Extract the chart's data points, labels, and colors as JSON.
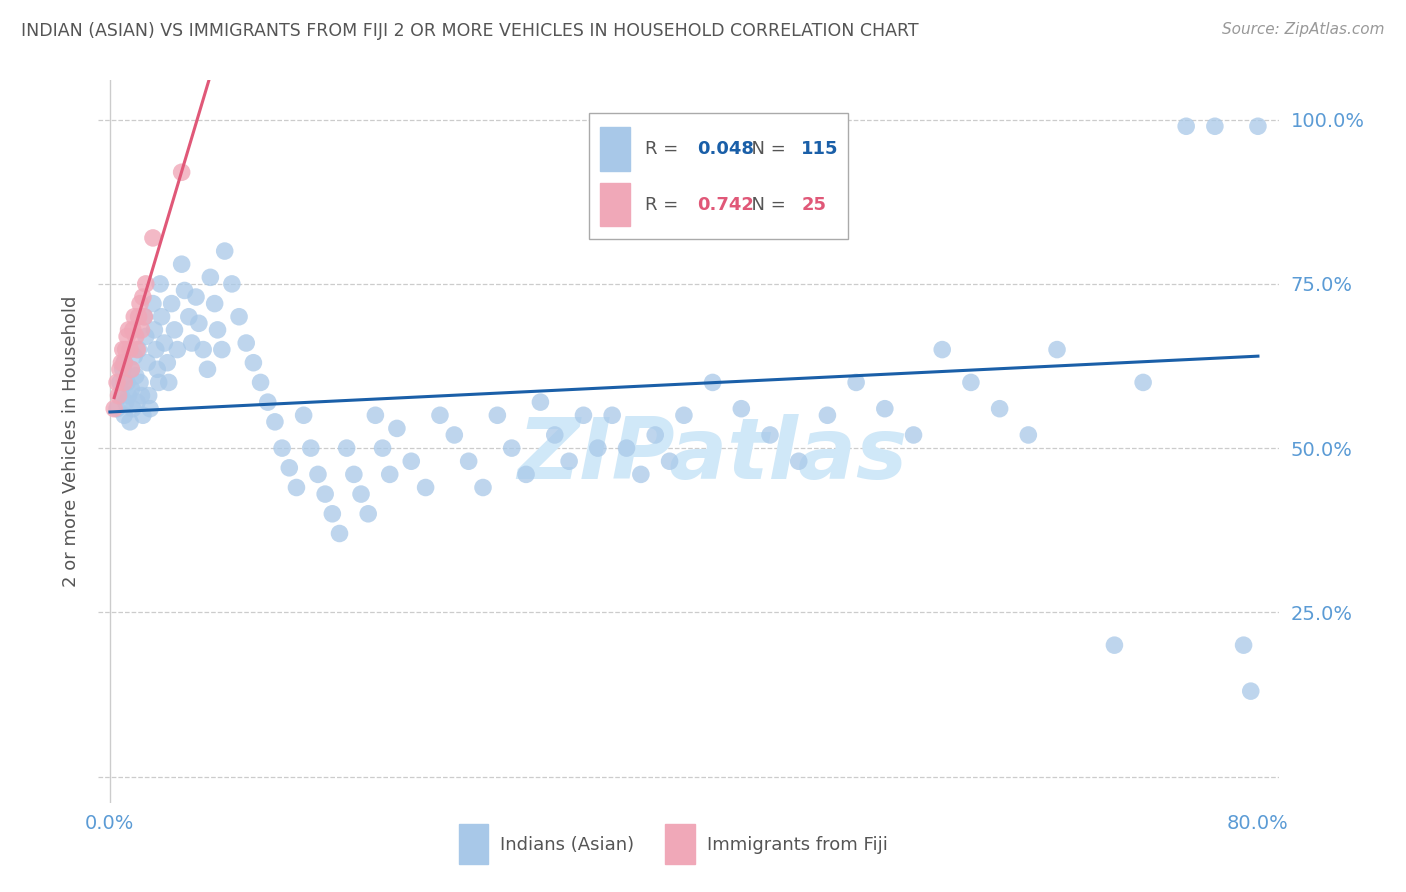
{
  "title": "INDIAN (ASIAN) VS IMMIGRANTS FROM FIJI 2 OR MORE VEHICLES IN HOUSEHOLD CORRELATION CHART",
  "source": "Source: ZipAtlas.com",
  "ylabel": "2 or more Vehicles in Household",
  "xmin": 0.0,
  "xmax": 0.8,
  "ymin": 0.0,
  "ymax": 1.0,
  "x_tick_positions": [
    0.0,
    0.1,
    0.2,
    0.3,
    0.4,
    0.5,
    0.6,
    0.7,
    0.8
  ],
  "x_tick_labels": [
    "0.0%",
    "",
    "",
    "",
    "",
    "",
    "",
    "",
    "80.0%"
  ],
  "y_tick_positions": [
    0.0,
    0.25,
    0.5,
    0.75,
    1.0
  ],
  "y_tick_labels_right": [
    "",
    "25.0%",
    "50.0%",
    "75.0%",
    "100.0%"
  ],
  "blue_scatter_color": "#a8c8e8",
  "pink_scatter_color": "#f0a8b8",
  "blue_line_color": "#1a5fa8",
  "pink_line_color": "#e05878",
  "tick_color": "#5b9bd5",
  "title_color": "#555555",
  "source_color": "#999999",
  "legend_label_color": "#555555",
  "legend_blue_R": "0.048",
  "legend_blue_N": "115",
  "legend_pink_R": "0.742",
  "legend_pink_N": "25",
  "watermark_text": "ZIPatlas",
  "watermark_color": "#d0e8f8",
  "grid_color": "#cccccc",
  "blue_x": [
    0.005,
    0.007,
    0.008,
    0.009,
    0.01,
    0.01,
    0.011,
    0.012,
    0.013,
    0.014,
    0.015,
    0.015,
    0.016,
    0.017,
    0.018,
    0.019,
    0.02,
    0.021,
    0.022,
    0.023,
    0.024,
    0.025,
    0.026,
    0.027,
    0.028,
    0.03,
    0.031,
    0.032,
    0.033,
    0.034,
    0.035,
    0.036,
    0.038,
    0.04,
    0.041,
    0.043,
    0.045,
    0.047,
    0.05,
    0.052,
    0.055,
    0.057,
    0.06,
    0.062,
    0.065,
    0.068,
    0.07,
    0.073,
    0.075,
    0.078,
    0.08,
    0.085,
    0.09,
    0.095,
    0.1,
    0.105,
    0.11,
    0.115,
    0.12,
    0.125,
    0.13,
    0.135,
    0.14,
    0.145,
    0.15,
    0.155,
    0.16,
    0.165,
    0.17,
    0.175,
    0.18,
    0.185,
    0.19,
    0.195,
    0.2,
    0.21,
    0.22,
    0.23,
    0.24,
    0.25,
    0.26,
    0.27,
    0.28,
    0.29,
    0.3,
    0.31,
    0.32,
    0.33,
    0.34,
    0.35,
    0.36,
    0.37,
    0.38,
    0.39,
    0.4,
    0.42,
    0.44,
    0.46,
    0.48,
    0.5,
    0.52,
    0.54,
    0.56,
    0.58,
    0.6,
    0.62,
    0.64,
    0.66,
    0.7,
    0.72,
    0.75,
    0.77,
    0.79,
    0.795,
    0.8
  ],
  "blue_y": [
    0.56,
    0.6,
    0.58,
    0.62,
    0.55,
    0.63,
    0.57,
    0.6,
    0.58,
    0.54,
    0.62,
    0.59,
    0.56,
    0.64,
    0.61,
    0.57,
    0.65,
    0.6,
    0.58,
    0.55,
    0.7,
    0.67,
    0.63,
    0.58,
    0.56,
    0.72,
    0.68,
    0.65,
    0.62,
    0.6,
    0.75,
    0.7,
    0.66,
    0.63,
    0.6,
    0.72,
    0.68,
    0.65,
    0.78,
    0.74,
    0.7,
    0.66,
    0.73,
    0.69,
    0.65,
    0.62,
    0.76,
    0.72,
    0.68,
    0.65,
    0.8,
    0.75,
    0.7,
    0.66,
    0.63,
    0.6,
    0.57,
    0.54,
    0.5,
    0.47,
    0.44,
    0.55,
    0.5,
    0.46,
    0.43,
    0.4,
    0.37,
    0.5,
    0.46,
    0.43,
    0.4,
    0.55,
    0.5,
    0.46,
    0.53,
    0.48,
    0.44,
    0.55,
    0.52,
    0.48,
    0.44,
    0.55,
    0.5,
    0.46,
    0.57,
    0.52,
    0.48,
    0.55,
    0.5,
    0.55,
    0.5,
    0.46,
    0.52,
    0.48,
    0.55,
    0.6,
    0.56,
    0.52,
    0.48,
    0.55,
    0.6,
    0.56,
    0.52,
    0.65,
    0.6,
    0.56,
    0.52,
    0.65,
    0.2,
    0.6,
    0.99,
    0.99,
    0.2,
    0.13,
    0.99
  ],
  "pink_x": [
    0.003,
    0.005,
    0.006,
    0.007,
    0.008,
    0.009,
    0.01,
    0.01,
    0.011,
    0.012,
    0.013,
    0.014,
    0.015,
    0.016,
    0.017,
    0.018,
    0.019,
    0.02,
    0.021,
    0.022,
    0.023,
    0.024,
    0.025,
    0.03,
    0.05
  ],
  "pink_y": [
    0.56,
    0.6,
    0.58,
    0.62,
    0.63,
    0.65,
    0.6,
    0.63,
    0.65,
    0.67,
    0.68,
    0.65,
    0.62,
    0.68,
    0.7,
    0.67,
    0.65,
    0.7,
    0.72,
    0.68,
    0.73,
    0.7,
    0.75,
    0.82,
    0.92
  ],
  "pink_line_x0": 0.003,
  "pink_line_x1": 0.05,
  "blue_line_x0": 0.0,
  "blue_line_x1": 0.8,
  "blue_line_y0": 0.555,
  "blue_line_y1": 0.64
}
